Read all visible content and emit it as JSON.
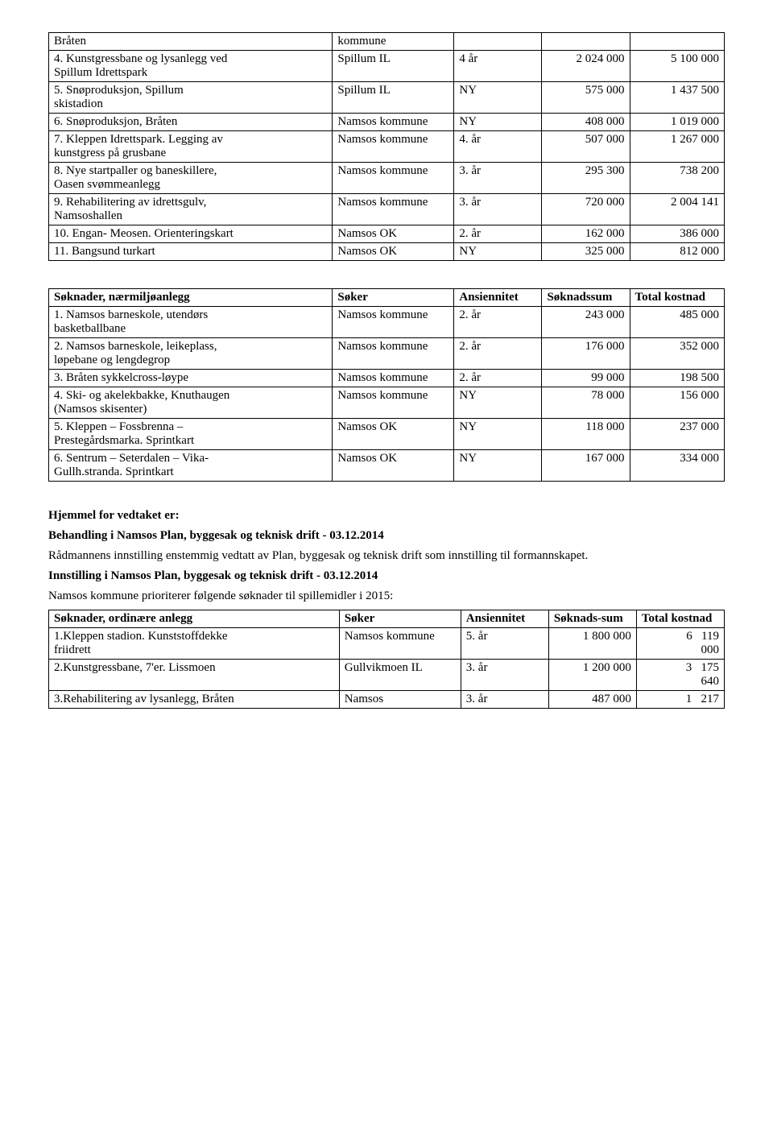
{
  "table1": {
    "rows": [
      {
        "desc_line1": "Bråten",
        "desc_line2": "",
        "soker": "kommune",
        "ans": "",
        "sum": "",
        "tot": ""
      },
      {
        "desc_line1": "4. Kunstgressbane og lysanlegg ved",
        "desc_line2": "Spillum Idrettspark",
        "soker": "Spillum IL",
        "ans": "4 år",
        "sum": "2 024 000",
        "tot": "5 100 000"
      },
      {
        "desc_line1": "5. Snøproduksjon, Spillum",
        "desc_line2": "skistadion",
        "soker": "Spillum IL",
        "ans": "NY",
        "sum": "575 000",
        "tot": "1 437 500"
      },
      {
        "desc_line1": "6. Snøproduksjon, Bråten",
        "desc_line2": "",
        "soker": "Namsos kommune",
        "ans": "NY",
        "sum": "408 000",
        "tot": "1 019 000"
      },
      {
        "desc_line1": "7. Kleppen Idrettspark. Legging av",
        "desc_line2": "kunstgress på grusbane",
        "soker": "Namsos kommune",
        "ans": "4. år",
        "sum": "507 000",
        "tot": "1 267 000"
      },
      {
        "desc_line1": "8. Nye startpaller og baneskillere,",
        "desc_line2": "Oasen svømmeanlegg",
        "soker": "Namsos kommune",
        "ans": "3. år",
        "sum": "295 300",
        "tot": "738 200"
      },
      {
        "desc_line1": "9. Rehabilitering av idrettsgulv,",
        "desc_line2": "Namsoshallen",
        "soker": "Namsos kommune",
        "ans": "3. år",
        "sum": "720 000",
        "tot": "2 004 141"
      },
      {
        "desc_line1": "10. Engan- Meosen. Orienteringskart",
        "desc_line2": "",
        "soker": "Namsos OK",
        "ans": "2. år",
        "sum": "162 000",
        "tot": "386 000"
      },
      {
        "desc_line1": "11. Bangsund turkart",
        "desc_line2": "",
        "soker": "Namsos OK",
        "ans": "NY",
        "sum": "325 000",
        "tot": "812 000"
      }
    ]
  },
  "table2": {
    "header": {
      "desc": "Søknader, nærmiljøanlegg",
      "soker": "Søker",
      "ans": "Ansiennitet",
      "sum": "Søknadssum",
      "tot": "Total kostnad"
    },
    "rows": [
      {
        "desc_line1": "1. Namsos barneskole, utendørs",
        "desc_line2": "basketballbane",
        "soker": "Namsos kommune",
        "ans": "2. år",
        "sum": "243 000",
        "tot": "485 000"
      },
      {
        "desc_line1": "2. Namsos barneskole, leikeplass,",
        "desc_line2": "løpebane og lengdegrop",
        "soker": "Namsos kommune",
        "ans": "2. år",
        "sum": "176 000",
        "tot": "352 000"
      },
      {
        "desc_line1": "3. Bråten sykkelcross-løype",
        "desc_line2": "",
        "soker": "Namsos kommune",
        "ans": "2. år",
        "sum": "99 000",
        "tot": "198 500"
      },
      {
        "desc_line1": "4. Ski- og akelekbakke, Knuthaugen",
        "desc_line2": "(Namsos skisenter)",
        "soker": "Namsos kommune",
        "ans": "NY",
        "sum": "78 000",
        "tot": "156 000"
      },
      {
        "desc_line1": "5. Kleppen – Fossbrenna –",
        "desc_line2": "Prestegårdsmarka. Sprintkart",
        "soker": "Namsos OK",
        "ans": "NY",
        "sum": "118 000",
        "tot": "237 000"
      },
      {
        "desc_line1": "6. Sentrum – Seterdalen – Vika-",
        "desc_line2": "Gullh.stranda. Sprintkart",
        "soker": "Namsos OK",
        "ans": "NY",
        "sum": "167 000",
        "tot": "334 000"
      }
    ]
  },
  "body": {
    "hjemmel": "Hjemmel for vedtaket er:",
    "behandling": "Behandling i Namsos Plan, byggesak og teknisk drift - 03.12.2014",
    "behandling_text": "Rådmannens innstilling enstemmig vedtatt av Plan, byggesak og teknisk drift som innstilling til formannskapet.",
    "innstilling": "Innstilling i Namsos Plan, byggesak og teknisk drift - 03.12.2014",
    "innstilling_text": "Namsos kommune prioriterer følgende søknader til spillemidler i 2015:"
  },
  "table3": {
    "header": {
      "desc": "Søknader, ordinære anlegg",
      "soker": "Søker",
      "ans": "Ansiennitet",
      "sum": "Søknads-sum",
      "tot": "Total kostnad"
    },
    "rows": [
      {
        "desc_line1": "1.Kleppen stadion. Kunststoffdekke",
        "desc_line2": "friidrett",
        "soker": "Namsos kommune",
        "ans": "5. år",
        "sum": "1 800 000",
        "tot_a": "6",
        "tot_b": "119",
        "tot_c": "000"
      },
      {
        "desc_line1": "2.Kunstgressbane, 7'er. Lissmoen",
        "desc_line2": "",
        "soker": "Gullvikmoen IL",
        "ans": "3. år",
        "sum": "1 200 000",
        "tot_a": "3",
        "tot_b": "175",
        "tot_c": "640"
      },
      {
        "desc_line1": "3.Rehabilitering av lysanlegg, Bråten",
        "desc_line2": "",
        "soker": "Namsos",
        "ans": "3. år",
        "sum": "487 000",
        "tot_a": "1",
        "tot_b": "217",
        "tot_c": ""
      }
    ]
  }
}
